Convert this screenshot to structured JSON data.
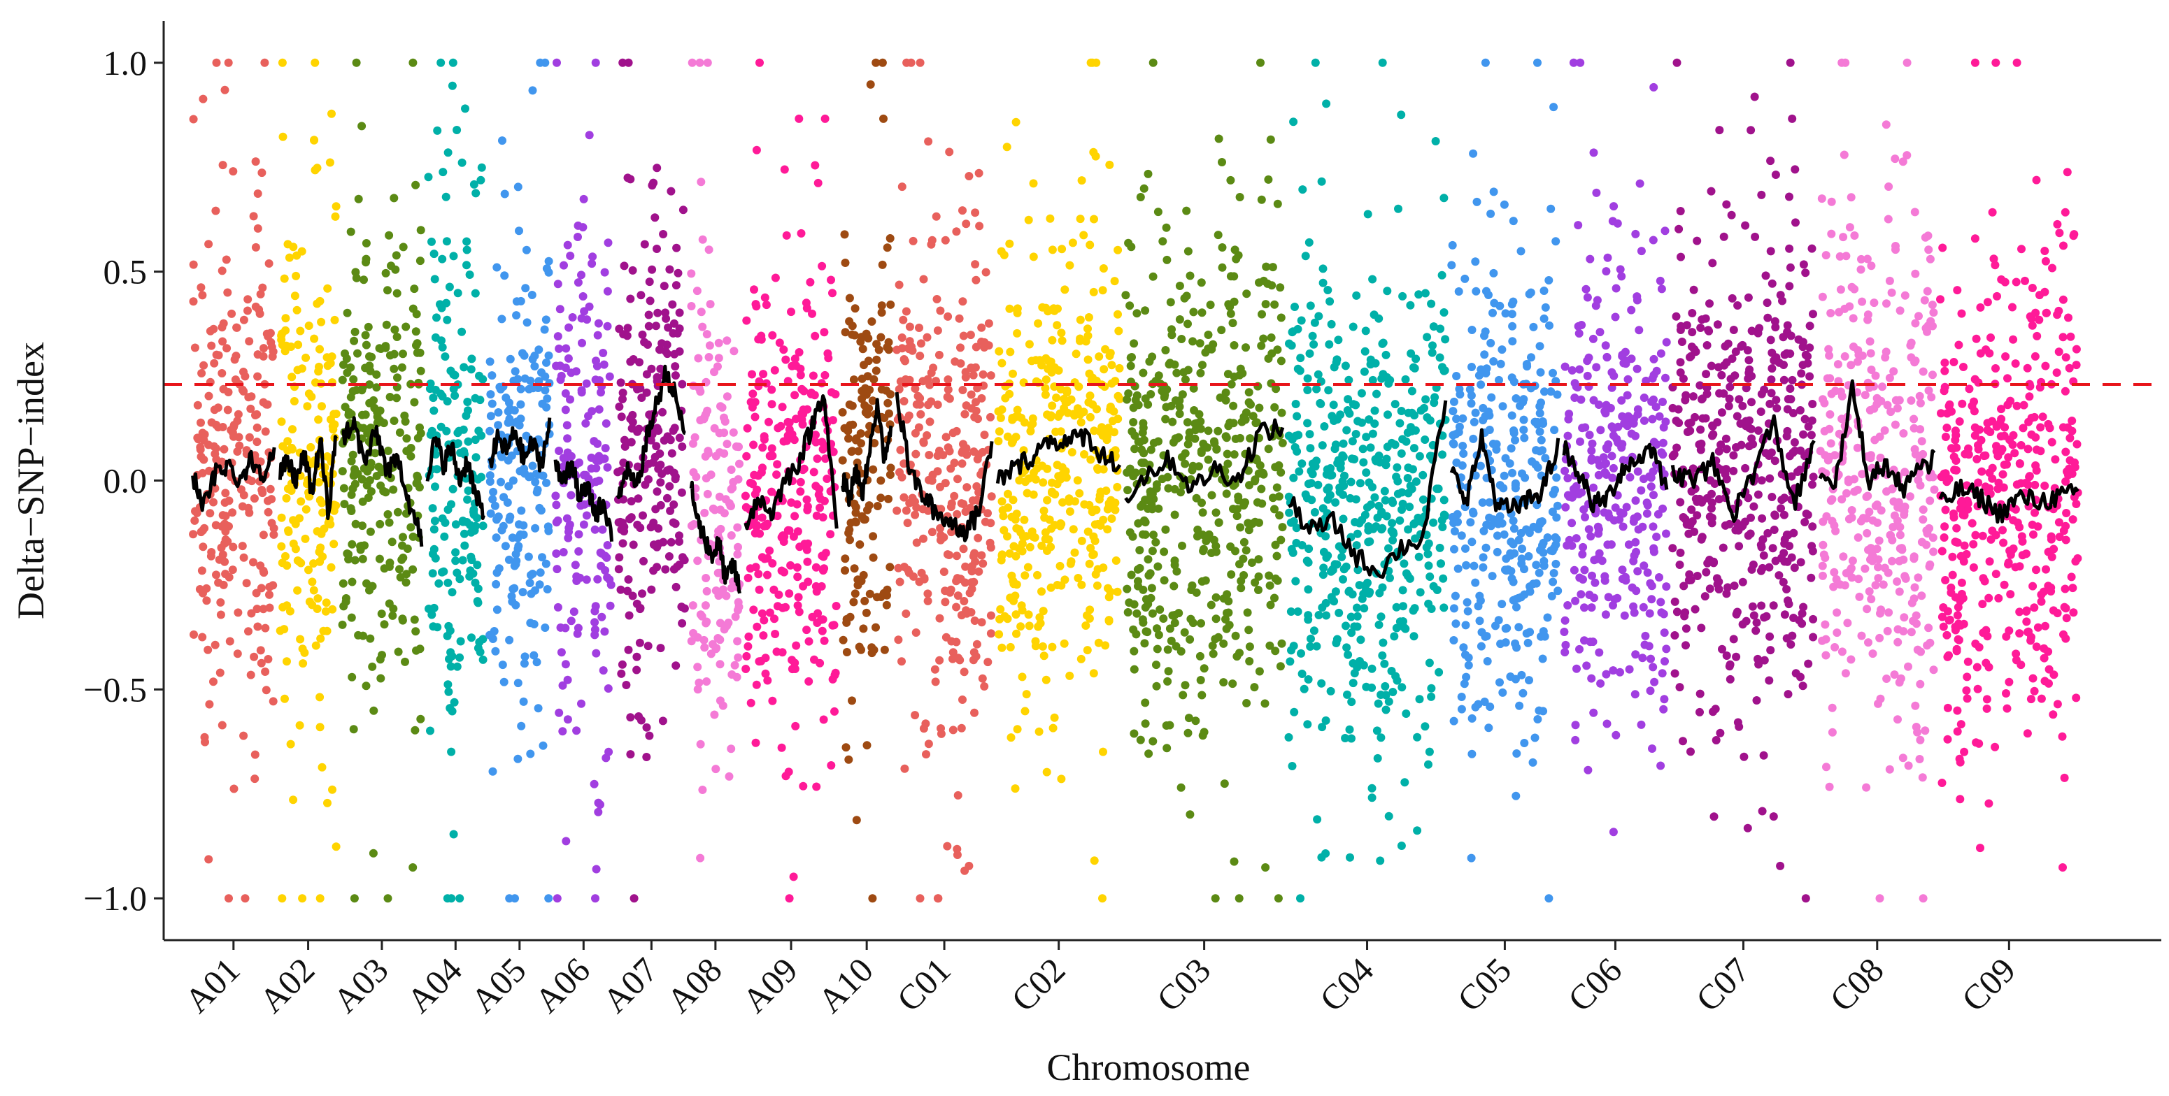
{
  "chart_data": {
    "type": "scatter",
    "title": "",
    "xlabel": "Chromosome",
    "ylabel": "Delta−SNP−index",
    "ylim": [
      -1.1,
      1.1
    ],
    "y_ticks": [
      {
        "value": 1.0,
        "label": "1.0"
      },
      {
        "value": 0.5,
        "label": "0.5"
      },
      {
        "value": 0.0,
        "label": "0.0"
      },
      {
        "value": -0.5,
        "label": "−0.5"
      },
      {
        "value": -1.0,
        "label": "−1.0"
      }
    ],
    "threshold": {
      "value": 0.23,
      "color": "#e8141a",
      "style": "dashed"
    },
    "trend_line_color": "#000000",
    "chromosomes": [
      {
        "name": "A01",
        "color": "#e8605c",
        "start": 0.0,
        "end": 4.2,
        "trend": [
          0.01,
          -0.06,
          0.02,
          0.04,
          0.0,
          0.05,
          0.02,
          0.06
        ]
      },
      {
        "name": "A02",
        "color": "#ffd400",
        "start": 4.5,
        "end": 7.4,
        "trend": [
          0.02,
          0.04,
          0.0,
          0.06,
          -0.03,
          0.1,
          -0.08,
          0.12
        ]
      },
      {
        "name": "A03",
        "color": "#5b8a14",
        "start": 7.7,
        "end": 11.8,
        "trend": [
          0.1,
          0.14,
          0.04,
          0.12,
          0.02,
          0.05,
          -0.06,
          -0.14
        ]
      },
      {
        "name": "A04",
        "color": "#00b0a8",
        "start": 12.1,
        "end": 15.0,
        "trend": [
          0.02,
          0.1,
          0.04,
          0.08,
          0.0,
          0.05,
          -0.04,
          -0.08
        ]
      },
      {
        "name": "A05",
        "color": "#4196ee",
        "start": 15.3,
        "end": 18.4,
        "trend": [
          0.04,
          0.1,
          0.07,
          0.12,
          0.05,
          0.09,
          0.04,
          0.13
        ]
      },
      {
        "name": "A06",
        "color": "#a13ee0",
        "start": 18.7,
        "end": 21.6,
        "trend": [
          0.03,
          0.0,
          0.04,
          -0.04,
          -0.02,
          -0.08,
          -0.05,
          -0.13
        ]
      },
      {
        "name": "A07",
        "color": "#a0128c",
        "start": 21.9,
        "end": 25.4,
        "trend": [
          -0.04,
          0.02,
          -0.02,
          0.1,
          0.18,
          0.26,
          0.2,
          0.1
        ]
      },
      {
        "name": "A08",
        "color": "#f47ad6",
        "start": 25.7,
        "end": 28.2,
        "trend": [
          -0.02,
          -0.1,
          -0.14,
          -0.18,
          -0.15,
          -0.24,
          -0.2,
          -0.26
        ]
      },
      {
        "name": "A09",
        "color": "#ff1a98",
        "start": 28.5,
        "end": 33.2,
        "trend": [
          -0.1,
          -0.04,
          -0.08,
          0.0,
          0.04,
          0.12,
          0.22,
          -0.12
        ]
      },
      {
        "name": "A10",
        "color": "#9e4a12",
        "start": 33.5,
        "end": 36.0,
        "trend": [
          0.0,
          -0.04,
          0.02,
          -0.03,
          0.08,
          0.18,
          0.06,
          0.12
        ]
      },
      {
        "name": "C01",
        "color": "#e8605c",
        "start": 36.3,
        "end": 41.2,
        "trend": [
          0.2,
          0.02,
          -0.04,
          -0.08,
          -0.1,
          -0.12,
          -0.08,
          0.1
        ]
      },
      {
        "name": "C02",
        "color": "#ffd400",
        "start": 41.5,
        "end": 47.8,
        "trend": [
          0.0,
          0.03,
          0.06,
          0.1,
          0.09,
          0.11,
          0.06,
          0.04
        ]
      },
      {
        "name": "C03",
        "color": "#5b8a14",
        "start": 48.1,
        "end": 56.2,
        "trend": [
          -0.04,
          0.02,
          0.05,
          -0.02,
          0.03,
          0.0,
          0.12,
          0.12
        ]
      },
      {
        "name": "C04",
        "color": "#00b0a8",
        "start": 56.5,
        "end": 64.6,
        "trend": [
          -0.05,
          -0.12,
          -0.1,
          -0.18,
          -0.22,
          -0.16,
          -0.14,
          0.2
        ]
      },
      {
        "name": "C05",
        "color": "#4196ee",
        "start": 64.9,
        "end": 70.4,
        "trend": [
          0.02,
          -0.04,
          0.1,
          -0.06,
          -0.07,
          -0.05,
          -0.02,
          0.08
        ]
      },
      {
        "name": "C06",
        "color": "#a13ee0",
        "start": 70.7,
        "end": 76.0,
        "trend": [
          0.08,
          0.02,
          -0.06,
          -0.04,
          0.03,
          0.05,
          0.08,
          -0.02
        ]
      },
      {
        "name": "C07",
        "color": "#a0128c",
        "start": 76.3,
        "end": 83.6,
        "trend": [
          0.02,
          0.0,
          0.04,
          -0.08,
          0.02,
          0.14,
          -0.06,
          0.08
        ]
      },
      {
        "name": "C08",
        "color": "#f47ad6",
        "start": 83.9,
        "end": 89.8,
        "trend": [
          0.02,
          0.0,
          0.22,
          0.0,
          0.04,
          -0.02,
          0.02,
          0.05
        ]
      },
      {
        "name": "C09",
        "color": "#ff1a98",
        "start": 90.1,
        "end": 97.2,
        "trend": [
          -0.06,
          -0.02,
          -0.04,
          -0.08,
          -0.04,
          -0.05,
          -0.04,
          -0.03
        ]
      }
    ],
    "xlim": [
      -1.5,
      101.5
    ]
  }
}
